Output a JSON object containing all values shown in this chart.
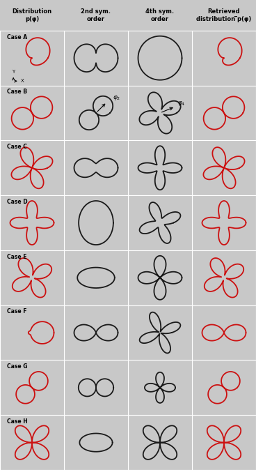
{
  "col_headers": [
    "Distribution\np(φ)",
    "2nd sym.\norder",
    "4th sym.\norder",
    "Retrieved\ndistribution ̅p(φ)"
  ],
  "cases": [
    "Case A",
    "Case B",
    "Case C",
    "Case D",
    "Case E",
    "Case F",
    "Case G",
    "Case H"
  ],
  "bg_gray": "#c8c8c8",
  "col0_bg": "#d8d8d8",
  "col1_bg": "#ebebeb",
  "col3_bg": "#d8d8d8",
  "red_color": "#cc1111",
  "black_color": "#1a1a1a",
  "fig_width": 3.68,
  "fig_height": 6.74
}
